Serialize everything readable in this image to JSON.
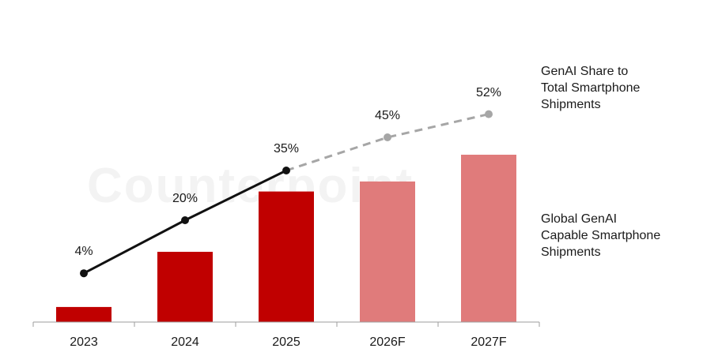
{
  "watermark": "Counterpoint",
  "colors": {
    "bar_actual": "#c00000",
    "bar_forecast": "#e07b7b",
    "line_actual": "#111111",
    "line_forecast": "#a6a6a6",
    "axis": "#9e9e9e"
  },
  "chart_data": {
    "type": "bar",
    "categories": [
      "2023",
      "2024",
      "2025",
      "2026F",
      "2027F"
    ],
    "series": [
      {
        "name": "Global GenAI Capable Smartphone Shipments",
        "type": "bar",
        "values": [
          0.09,
          0.42,
          0.78,
          0.84,
          1.0
        ],
        "forecast_from_index": 3
      },
      {
        "name": "GenAI Share to Total Smartphone Shipments",
        "type": "line",
        "values": [
          4,
          20,
          35,
          45,
          52
        ],
        "value_labels": [
          "4%",
          "20%",
          "35%",
          "45%",
          "52%"
        ],
        "forecast_from_index": 2
      }
    ],
    "legend_line": [
      "GenAI Share to",
      "Total Smartphone",
      "Shipments"
    ],
    "legend_bar": [
      "Global GenAI",
      "Capable Smartphone",
      "Shipments"
    ],
    "legend_placement": "right",
    "grid": false
  }
}
